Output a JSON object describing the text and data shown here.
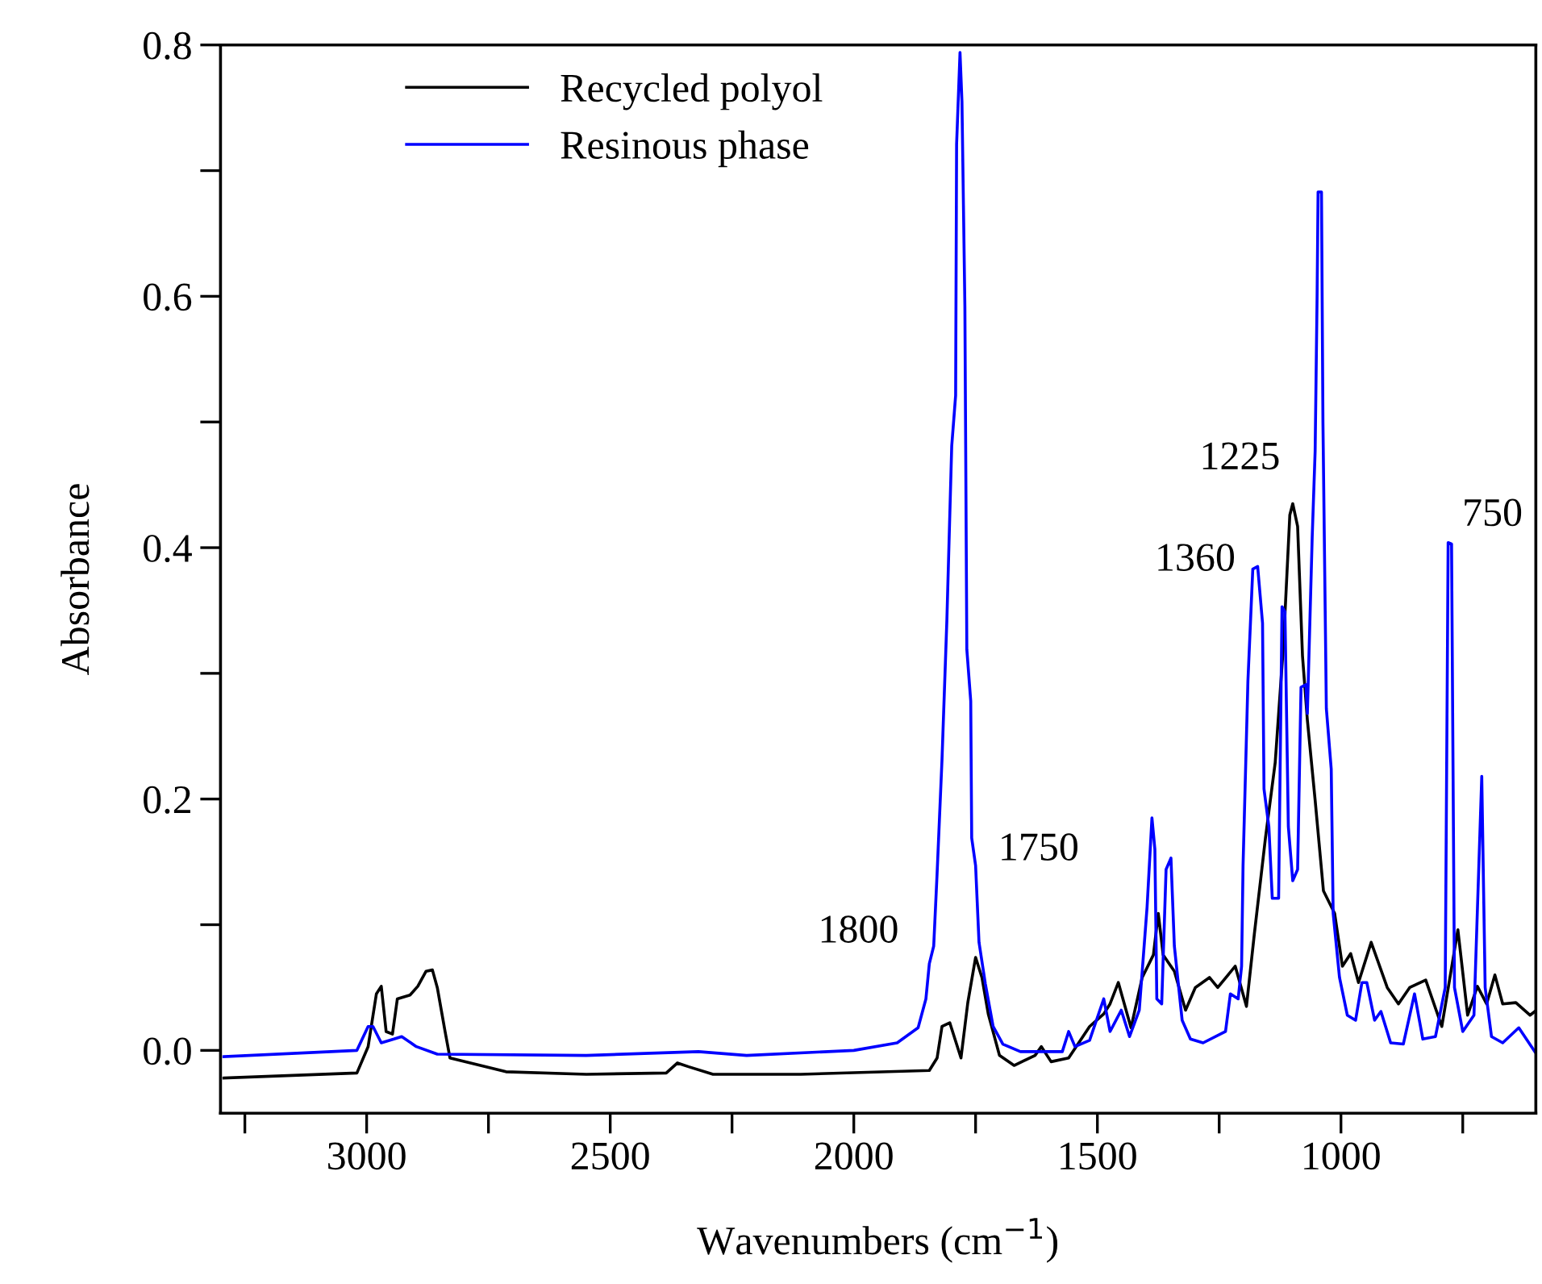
{
  "chart_data": {
    "type": "line",
    "xlabel": "Wavenumbers (cm$^{−1}$)",
    "ylabel": "Absorbance",
    "xlim": [
      3300,
      600
    ],
    "ylim": [
      -0.05,
      0.8
    ],
    "xticks": [
      {
        "value": 3250,
        "label": null
      },
      3000,
      {
        "value": 2750,
        "label": null
      },
      2500,
      {
        "value": 2250,
        "label": null
      },
      2000,
      {
        "value": 1750,
        "label": null
      },
      1500,
      {
        "value": 1250,
        "label": null
      },
      1000,
      {
        "value": 750,
        "label": null
      }
    ],
    "yticks": [
      {
        "value": 0,
        "label": "0.0"
      },
      {
        "value": 0.1,
        "label": null
      },
      0.2,
      {
        "value": 0.3,
        "label": null
      },
      0.4,
      {
        "value": 0.5,
        "label": null
      },
      0.6,
      {
        "value": 0.7,
        "label": null
      },
      0.8
    ],
    "legend": "top left",
    "grid": false,
    "marker": "none",
    "line_style": "solid",
    "series": [
      {
        "name": "Recycled polyol",
        "color": "#000000",
        "x": [
          3293,
          3020,
          2997,
          2980,
          2970,
          2960,
          2947,
          2937,
          2911,
          2895,
          2878,
          2865,
          2855,
          2839,
          2829,
          2714,
          2549,
          2385,
          2362,
          2339,
          2289,
          2109,
          1845,
          1829,
          1819,
          1803,
          1780,
          1766,
          1750,
          1737,
          1724,
          1701,
          1671,
          1628,
          1615,
          1595,
          1559,
          1516,
          1487,
          1474,
          1457,
          1431,
          1408,
          1385,
          1375,
          1365,
          1342,
          1319,
          1299,
          1270,
          1253,
          1217,
          1194,
          1178,
          1155,
          1135,
          1118,
          1105,
          1099,
          1089,
          1079,
          1069,
          1053,
          1036,
          1013,
          997,
          980,
          964,
          938,
          905,
          882,
          859,
          826,
          793,
          760,
          740,
          720,
          701,
          684,
          668,
          641,
          612,
          602
        ],
        "values": [
          -0.022,
          -0.018,
          0.003,
          0.045,
          0.051,
          0.015,
          0.013,
          0.041,
          0.044,
          0.051,
          0.063,
          0.064,
          0.05,
          0.015,
          -0.006,
          -0.017,
          -0.019,
          -0.018,
          -0.01,
          -0.013,
          -0.019,
          -0.019,
          -0.016,
          -0.006,
          0.019,
          0.022,
          -0.006,
          0.038,
          0.074,
          0.058,
          0.029,
          -0.004,
          -0.012,
          -0.004,
          0.003,
          -0.009,
          -0.006,
          0.019,
          0.029,
          0.037,
          0.054,
          0.018,
          0.058,
          0.076,
          0.109,
          0.076,
          0.063,
          0.032,
          0.05,
          0.058,
          0.05,
          0.067,
          0.035,
          0.092,
          0.169,
          0.229,
          0.323,
          0.426,
          0.435,
          0.417,
          0.314,
          0.263,
          0.199,
          0.127,
          0.109,
          0.067,
          0.077,
          0.054,
          0.086,
          0.05,
          0.037,
          0.05,
          0.056,
          0.019,
          0.096,
          0.028,
          0.051,
          0.037,
          0.06,
          0.037,
          0.038,
          0.028,
          0.031
        ]
      },
      {
        "name": "Resinous phase",
        "color": "#0000ff",
        "x": [
          3293,
          3020,
          2997,
          2987,
          2970,
          2944,
          2928,
          2898,
          2855,
          2549,
          2319,
          2220,
          2000,
          1911,
          1868,
          1852,
          1845,
          1836,
          1829,
          1819,
          1809,
          1799,
          1791,
          1789,
          1782,
          1778,
          1772,
          1768,
          1760,
          1758,
          1750,
          1743,
          1730,
          1714,
          1694,
          1658,
          1572,
          1559,
          1546,
          1516,
          1487,
          1474,
          1451,
          1434,
          1414,
          1398,
          1388,
          1382,
          1378,
          1368,
          1359,
          1349,
          1342,
          1326,
          1309,
          1283,
          1237,
          1227,
          1211,
          1204,
          1201,
          1191,
          1181,
          1171,
          1161,
          1158,
          1148,
          1141,
          1128,
          1121,
          1115,
          1108,
          1099,
          1089,
          1082,
          1072,
          1069,
          1059,
          1053,
          1049,
          1047,
          1040,
          1037,
          1030,
          1020,
          1016,
          1003,
          987,
          970,
          957,
          947,
          931,
          918,
          898,
          872,
          849,
          832,
          806,
          786,
          780,
          773,
          767,
          750,
          727,
          711,
          704,
          691,
          668,
          635,
          602
        ],
        "values": [
          -0.005,
          0.0,
          0.019,
          0.019,
          0.006,
          0.009,
          0.011,
          0.003,
          -0.003,
          -0.004,
          -0.001,
          -0.004,
          0.0,
          0.006,
          0.018,
          0.041,
          0.069,
          0.083,
          0.141,
          0.231,
          0.342,
          0.481,
          0.521,
          0.721,
          0.794,
          0.755,
          0.592,
          0.319,
          0.278,
          0.169,
          0.147,
          0.086,
          0.053,
          0.019,
          0.005,
          -0.001,
          -0.001,
          0.015,
          0.003,
          0.008,
          0.041,
          0.015,
          0.032,
          0.011,
          0.032,
          0.114,
          0.185,
          0.16,
          0.041,
          0.037,
          0.144,
          0.153,
          0.083,
          0.024,
          0.009,
          0.006,
          0.015,
          0.045,
          0.041,
          0.067,
          0.147,
          0.294,
          0.383,
          0.385,
          0.34,
          0.208,
          0.178,
          0.121,
          0.121,
          0.353,
          0.349,
          0.178,
          0.135,
          0.144,
          0.289,
          0.291,
          0.268,
          0.409,
          0.477,
          0.6,
          0.683,
          0.683,
          0.5,
          0.272,
          0.224,
          0.109,
          0.058,
          0.028,
          0.024,
          0.054,
          0.054,
          0.024,
          0.031,
          0.006,
          0.005,
          0.045,
          0.009,
          0.011,
          0.05,
          0.404,
          0.403,
          0.05,
          0.015,
          0.028,
          0.218,
          0.05,
          0.011,
          0.006,
          0.018,
          -0.001
        ]
      }
    ],
    "annotations": [
      "1800",
      "1750",
      "1360",
      "1225",
      "750"
    ]
  }
}
